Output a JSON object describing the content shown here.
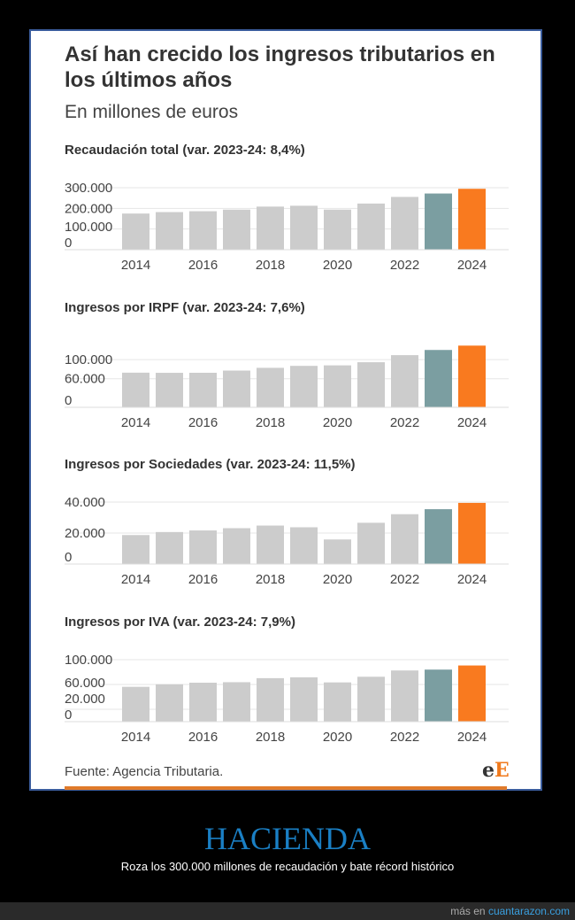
{
  "header": {
    "title": "Así han crecido los ingresos tributarios en los últimos años",
    "subtitle": "En millones de euros"
  },
  "colors": {
    "default": "#cccccc",
    "previous_year": "#7b9ea1",
    "current_year": "#f97a1f",
    "grid": "#e6e6e6",
    "text": "#444444"
  },
  "chart_data": [
    {
      "type": "bar",
      "title": "Recaudación total (var. 2023-24: 8,4%)",
      "categories": [
        2014,
        2015,
        2016,
        2017,
        2018,
        2019,
        2020,
        2021,
        2022,
        2023,
        2024
      ],
      "values": [
        174987,
        182009,
        186249,
        193951,
        208685,
        212808,
        194012,
        223385,
        255463,
        271935,
        294734
      ],
      "yticks": [
        {
          "v": 0,
          "label": "0"
        },
        {
          "v": 100000,
          "label": "100.000"
        },
        {
          "v": 200000,
          "label": "200.000"
        },
        {
          "v": 300000,
          "label": "300.000"
        }
      ],
      "xtick_labels": [
        "2014",
        "2016",
        "2018",
        "2020",
        "2022",
        "2024"
      ],
      "ylim": [
        0,
        300000
      ],
      "grid": true
    },
    {
      "type": "bar",
      "title": "Ingresos por IRPF (var. 2023-24: 7,6%)",
      "categories": [
        2014,
        2015,
        2016,
        2017,
        2018,
        2019,
        2020,
        2021,
        2022,
        2023,
        2024
      ],
      "values": [
        72662,
        72346,
        72416,
        77038,
        82859,
        86892,
        87972,
        94546,
        109396,
        120280,
        129413
      ],
      "yticks": [
        {
          "v": 0,
          "label": "0"
        },
        {
          "v": 60000,
          "label": "60.000"
        },
        {
          "v": 100000,
          "label": "100.000"
        }
      ],
      "xtick_labels": [
        "2014",
        "2016",
        "2018",
        "2020",
        "2022",
        "2024"
      ],
      "ylim": [
        0,
        130000
      ],
      "grid": true
    },
    {
      "type": "bar",
      "title": "Ingresos por Sociedades (var. 2023-24: 11,5%)",
      "categories": [
        2014,
        2015,
        2016,
        2017,
        2018,
        2019,
        2020,
        2021,
        2022,
        2023,
        2024
      ],
      "values": [
        18713,
        20649,
        21678,
        23143,
        24838,
        23733,
        15858,
        26627,
        32176,
        35397,
        39475
      ],
      "yticks": [
        {
          "v": 0,
          "label": "0"
        },
        {
          "v": 20000,
          "label": "20.000"
        },
        {
          "v": 40000,
          "label": "40.000"
        }
      ],
      "xtick_labels": [
        "2014",
        "2016",
        "2018",
        "2020",
        "2022",
        "2024"
      ],
      "ylim": [
        0,
        40000
      ],
      "grid": true
    },
    {
      "type": "bar",
      "title": "Ingresos por IVA (var. 2023-24: 7,9%)",
      "categories": [
        2014,
        2015,
        2016,
        2017,
        2018,
        2019,
        2020,
        2021,
        2022,
        2023,
        2024
      ],
      "values": [
        56174,
        60305,
        62845,
        63647,
        70177,
        71538,
        63337,
        72451,
        82584,
        83979,
        90631
      ],
      "yticks": [
        {
          "v": 0,
          "label": "0"
        },
        {
          "v": 20000,
          "label": "20.000"
        },
        {
          "v": 60000,
          "label": "60.000"
        },
        {
          "v": 100000,
          "label": "100.000"
        }
      ],
      "xtick_labels": [
        "2014",
        "2016",
        "2018",
        "2020",
        "2022",
        "2024"
      ],
      "ylim": [
        0,
        100000
      ],
      "grid": true
    }
  ],
  "footer_card": {
    "source": "Fuente: Agencia Tributaria.",
    "logo": "eE"
  },
  "meme": {
    "title": "HACIENDA",
    "tagline": "Roza los 300.000 millones de recaudación y bate récord histórico"
  },
  "site": {
    "prefix": "más en ",
    "name": "cuantarazon.com"
  }
}
